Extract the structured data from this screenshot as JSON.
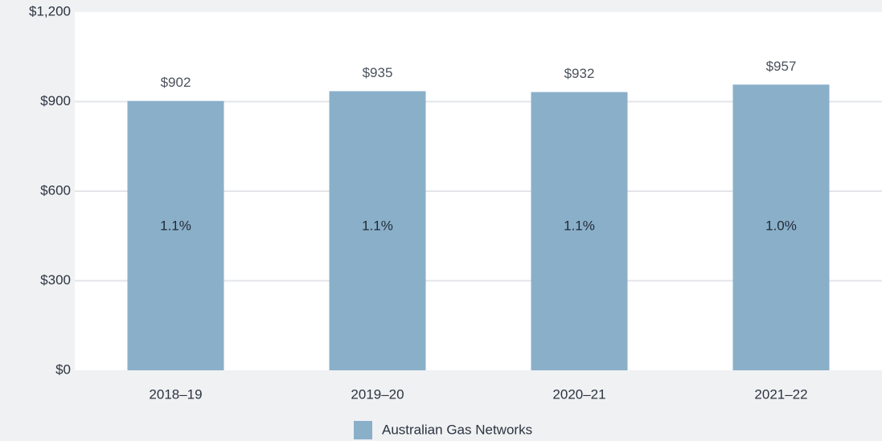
{
  "chart_data": {
    "type": "bar",
    "categories": [
      "2018–19",
      "2019–20",
      "2020–21",
      "2021–22"
    ],
    "series": [
      {
        "name": "Australian Gas Networks",
        "color": "#8aafc9",
        "values": [
          902,
          935,
          932,
          957
        ],
        "value_labels": [
          "$902",
          "$935",
          "$932",
          "$957"
        ]
      }
    ],
    "bar_annotations": [
      "1.1%",
      "1.1%",
      "1.1%",
      "1.0%"
    ],
    "ylim": [
      0,
      1200
    ],
    "yticks": [
      {
        "value": 0,
        "label": "$0"
      },
      {
        "value": 300,
        "label": "$300"
      },
      {
        "value": 600,
        "label": "$600"
      },
      {
        "value": 900,
        "label": "$900"
      },
      {
        "value": 1200,
        "label": "$1,200"
      }
    ],
    "grid": true,
    "legend": "bottom"
  }
}
